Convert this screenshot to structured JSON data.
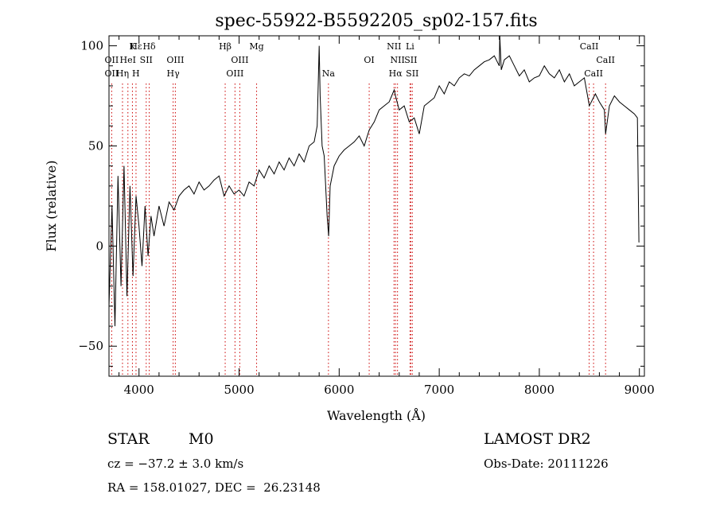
{
  "chart_data": {
    "type": "line",
    "title": "spec-55922-B5592205_sp02-157.fits",
    "xlabel": "Wavelength (Å)",
    "ylabel": "Flux (relative)",
    "xlim": [
      3700,
      9050
    ],
    "ylim": [
      -65,
      105
    ],
    "xticks": [
      4000,
      5000,
      6000,
      7000,
      8000,
      9000
    ],
    "yticks": [
      -50,
      0,
      50,
      100
    ],
    "grid": false,
    "series": [
      {
        "x": [
          3700,
          3730,
          3760,
          3790,
          3820,
          3850,
          3880,
          3910,
          3940,
          3970,
          4000,
          4030,
          4060,
          4090,
          4120,
          4150,
          4200,
          4250,
          4300,
          4350,
          4400,
          4450,
          4500,
          4550,
          4600,
          4650,
          4700,
          4750,
          4800,
          4850,
          4900,
          4950,
          5000,
          5050,
          5100,
          5150,
          5200,
          5250,
          5300,
          5350,
          5400,
          5450,
          5500,
          5550,
          5600,
          5650,
          5700,
          5750,
          5780,
          5800,
          5810,
          5830,
          5850,
          5880,
          5895,
          5910,
          5950,
          6000,
          6050,
          6100,
          6150,
          6200,
          6250,
          6300,
          6350,
          6400,
          6450,
          6500,
          6550,
          6563,
          6600,
          6650,
          6700,
          6750,
          6800,
          6850,
          6900,
          6950,
          7000,
          7050,
          7100,
          7150,
          7200,
          7250,
          7300,
          7350,
          7400,
          7450,
          7500,
          7550,
          7600,
          7605,
          7620,
          7650,
          7700,
          7750,
          7800,
          7850,
          7900,
          7950,
          8000,
          8050,
          8100,
          8150,
          8200,
          8250,
          8300,
          8350,
          8400,
          8450,
          8500,
          8540,
          8560,
          8600,
          8650,
          8662,
          8700,
          8750,
          8800,
          8850,
          8900,
          8950,
          8980,
          8995,
          9000
        ],
        "values": [
          -30,
          20,
          -40,
          35,
          -20,
          40,
          -25,
          30,
          -15,
          25,
          10,
          -10,
          20,
          -5,
          15,
          5,
          20,
          10,
          22,
          18,
          25,
          28,
          30,
          26,
          32,
          28,
          30,
          33,
          35,
          25,
          30,
          26,
          28,
          25,
          32,
          30,
          38,
          34,
          40,
          36,
          42,
          38,
          44,
          40,
          46,
          42,
          50,
          52,
          60,
          100,
          75,
          50,
          45,
          15,
          5,
          30,
          40,
          45,
          48,
          50,
          52,
          55,
          50,
          58,
          62,
          68,
          70,
          72,
          78,
          75,
          68,
          70,
          62,
          64,
          56,
          70,
          72,
          74,
          80,
          76,
          82,
          80,
          84,
          86,
          85,
          88,
          90,
          92,
          93,
          95,
          90,
          105,
          88,
          93,
          95,
          90,
          85,
          88,
          82,
          84,
          85,
          90,
          86,
          84,
          88,
          82,
          86,
          80,
          82,
          84,
          70,
          74,
          76,
          72,
          68,
          56,
          70,
          75,
          72,
          70,
          68,
          66,
          64,
          2,
          2
        ]
      }
    ],
    "line_markers": [
      {
        "label": "Hε",
        "x": 3970,
        "row": 0
      },
      {
        "label": "K",
        "x": 3934,
        "row": 0
      },
      {
        "label": "Hδ",
        "x": 4102,
        "row": 0
      },
      {
        "label": "OII",
        "x": 3727,
        "row": 1
      },
      {
        "label": "HeI",
        "x": 3889,
        "row": 1
      },
      {
        "label": "SII",
        "x": 4072,
        "row": 1
      },
      {
        "label": "OII",
        "x": 3727,
        "row": 2
      },
      {
        "label": "Hη",
        "x": 3835,
        "row": 2
      },
      {
        "label": "H",
        "x": 3969,
        "row": 2
      },
      {
        "label": "OIII",
        "x": 4363,
        "row": 1
      },
      {
        "label": "Hγ",
        "x": 4341,
        "row": 2
      },
      {
        "label": "Hβ",
        "x": 4861,
        "row": 0
      },
      {
        "label": "OIII",
        "x": 5007,
        "row": 1
      },
      {
        "label": "OIII",
        "x": 4959,
        "row": 2
      },
      {
        "label": "Mg",
        "x": 5175,
        "row": 0
      },
      {
        "label": "Na",
        "x": 5893,
        "row": 2
      },
      {
        "label": "OI",
        "x": 6300,
        "row": 1
      },
      {
        "label": "NII",
        "x": 6548,
        "row": 0
      },
      {
        "label": "Li",
        "x": 6708,
        "row": 0
      },
      {
        "label": "NII",
        "x": 6583,
        "row": 1
      },
      {
        "label": "SII",
        "x": 6716,
        "row": 1
      },
      {
        "label": "Hα",
        "x": 6563,
        "row": 2
      },
      {
        "label": "SII",
        "x": 6731,
        "row": 2
      },
      {
        "label": "CaII",
        "x": 8498,
        "row": 0
      },
      {
        "label": "CaII",
        "x": 8662,
        "row": 1
      },
      {
        "label": "CaII",
        "x": 8542,
        "row": 2
      }
    ],
    "marker_color": "#cc0000",
    "line_color": "#000000"
  },
  "info": {
    "object_class": "STAR",
    "subclass": "M0",
    "survey": "LAMOST DR2",
    "cz": "cz = −37.2 ± 3.0 km/s",
    "obs_date": "Obs-Date: 20111226",
    "coords": "RA = 158.01027, DEC =  26.23148"
  }
}
